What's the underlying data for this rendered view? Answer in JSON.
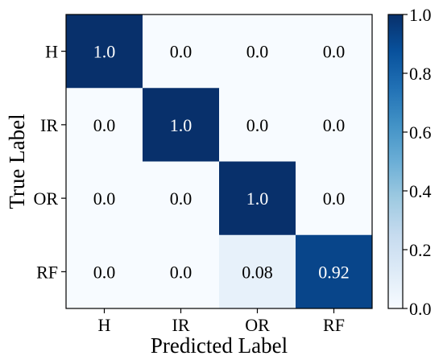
{
  "chart_data": {
    "type": "heatmap",
    "title": "",
    "xlabel": "Predicted Label",
    "ylabel": "True Label",
    "x_categories": [
      "H",
      "IR",
      "OR",
      "RF"
    ],
    "y_categories": [
      "H",
      "IR",
      "OR",
      "RF"
    ],
    "values": [
      [
        1.0,
        0.0,
        0.0,
        0.0
      ],
      [
        0.0,
        1.0,
        0.0,
        0.0
      ],
      [
        0.0,
        0.0,
        1.0,
        0.0
      ],
      [
        0.0,
        0.0,
        0.08,
        0.92
      ]
    ],
    "cell_labels": [
      [
        "1.0",
        "0.0",
        "0.0",
        "0.0"
      ],
      [
        "0.0",
        "1.0",
        "0.0",
        "0.0"
      ],
      [
        "0.0",
        "0.0",
        "1.0",
        "0.0"
      ],
      [
        "0.0",
        "0.0",
        "0.08",
        "0.92"
      ]
    ],
    "colorbar": {
      "range": [
        0.0,
        1.0
      ],
      "ticks": [
        "0.0",
        "0.2",
        "0.4",
        "0.6",
        "0.8",
        "1.0"
      ],
      "colormap": [
        "#f7fbff",
        "#deebf7",
        "#c6dbef",
        "#9ecae1",
        "#6baed6",
        "#4292c6",
        "#2171b5",
        "#08519c",
        "#08306b"
      ]
    },
    "grid": false
  }
}
